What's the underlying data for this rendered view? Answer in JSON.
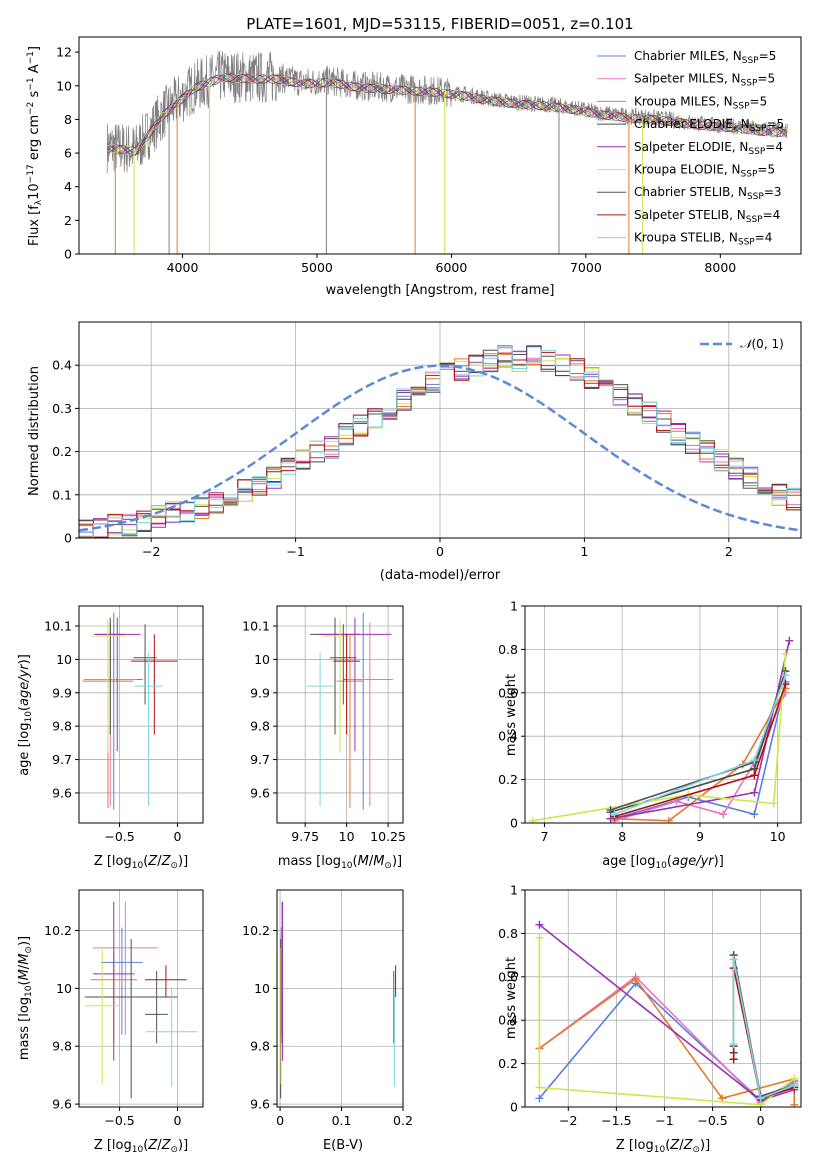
{
  "figure_title": "PLATE=1601, MJD=53115, FIBERID=0051, z=0.101",
  "colors": {
    "Chabrier MILES": "#5b7fdb",
    "Salpeter MILES": "#e377c2",
    "Kroupa MILES": "#e5792c",
    "Chabrier ELODIE": "#4d4d4d",
    "Salpeter ELODIE": "#9b30b0",
    "Kroupa ELODIE": "#cde84a",
    "Chabrier STELIB": "#555555",
    "Salpeter STELIB": "#b01010",
    "Kroupa STELIB": "#7fd6e0",
    "data": "#808080",
    "normal": "#5b8bd8"
  },
  "legend_spectrum": [
    {
      "name": "Chabrier MILES",
      "label": "Chabrier MILES, N",
      "sub": "SSP",
      "suffix": "=5"
    },
    {
      "name": "Salpeter MILES",
      "label": "Salpeter MILES, N",
      "sub": "SSP",
      "suffix": "=5"
    },
    {
      "name": "Kroupa MILES",
      "label": "Kroupa MILES, N",
      "sub": "SSP",
      "suffix": "=5"
    },
    {
      "name": "Chabrier ELODIE",
      "label": "Chabrier ELODIE, N",
      "sub": "SSP",
      "suffix": "=5"
    },
    {
      "name": "Salpeter ELODIE",
      "label": "Salpeter ELODIE, N",
      "sub": "SSP",
      "suffix": "=4"
    },
    {
      "name": "Kroupa ELODIE",
      "label": "Kroupa ELODIE, N",
      "sub": "SSP",
      "suffix": "=5"
    },
    {
      "name": "Chabrier STELIB",
      "label": "Chabrier STELIB, N",
      "sub": "SSP",
      "suffix": "=3"
    },
    {
      "name": "Salpeter STELIB",
      "label": "Salpeter STELIB, N",
      "sub": "SSP",
      "suffix": "=4"
    },
    {
      "name": "Kroupa STELIB",
      "label": "Kroupa STELIB, N",
      "sub": "SSP",
      "suffix": "=4"
    }
  ],
  "chart_data": [
    {
      "id": "spectrum",
      "type": "line",
      "title": "PLATE=1601, MJD=53115, FIBERID=0051, z=0.101",
      "xlabel": "wavelength [Angstrom, rest frame]",
      "ylabel": "Flux [f_λ 10^-17 erg cm^-2 s^-1 A^-1]",
      "xlim": [
        3230,
        8600
      ],
      "ylim": [
        0,
        12.9
      ],
      "xticks": [
        4000,
        5000,
        6000,
        7000,
        8000
      ],
      "yticks": [
        0,
        2,
        4,
        6,
        8,
        10,
        12
      ],
      "grid": false,
      "legend": "top-right",
      "data_envelope": {
        "x": [
          3440,
          3550,
          3650,
          3750,
          3850,
          3950,
          4100,
          4300,
          4500,
          4700,
          4900,
          5100,
          5300,
          5500,
          5700,
          5900,
          6100,
          6300,
          6500,
          6700,
          6900,
          7100,
          7300,
          7500,
          7700,
          7900,
          8100,
          8300,
          8500
        ],
        "y": [
          6.4,
          6.3,
          6.2,
          7.2,
          8.3,
          9.0,
          10.0,
          10.6,
          10.5,
          10.5,
          10.2,
          10.3,
          10.0,
          9.9,
          9.8,
          9.7,
          9.5,
          9.2,
          9.0,
          8.9,
          8.7,
          8.4,
          8.2,
          8.1,
          7.9,
          7.7,
          7.6,
          7.4,
          7.3
        ]
      },
      "model_spikes_x": [
        3500,
        3640,
        3900,
        3960,
        4200,
        5070,
        5730,
        5950,
        6800,
        7320,
        7420
      ]
    },
    {
      "id": "residuals",
      "type": "bar",
      "xlabel": "(data-model)/error",
      "ylabel": "Normed distribution",
      "xlim": [
        -2.5,
        2.5
      ],
      "ylim": [
        0,
        0.5
      ],
      "xticks": [
        -2,
        -1,
        0,
        1,
        2
      ],
      "yticks": [
        0.0,
        0.1,
        0.2,
        0.3,
        0.4
      ],
      "grid": true,
      "legend": "top-right",
      "legend_label": "N(0,1)",
      "bin_edges_start": -2.5,
      "bin_width": 0.1,
      "approx_hist": [
        0.02,
        0.02,
        0.03,
        0.03,
        0.04,
        0.05,
        0.06,
        0.06,
        0.07,
        0.08,
        0.1,
        0.11,
        0.12,
        0.14,
        0.16,
        0.18,
        0.2,
        0.21,
        0.24,
        0.26,
        0.28,
        0.3,
        0.32,
        0.34,
        0.36,
        0.38,
        0.39,
        0.4,
        0.41,
        0.42,
        0.41,
        0.42,
        0.41,
        0.4,
        0.39,
        0.37,
        0.35,
        0.33,
        0.31,
        0.29,
        0.27,
        0.24,
        0.22,
        0.2,
        0.18,
        0.16,
        0.14,
        0.12,
        0.1,
        0.09
      ]
    },
    {
      "id": "age_vs_Z",
      "type": "scatter",
      "xlabel": "Z [log10(Z/Z⊙)]",
      "ylabel": "age [log10(age/yr)]",
      "xlim": [
        -0.85,
        0.22
      ],
      "ylim": [
        9.51,
        10.16
      ],
      "xticks": [
        -0.5,
        0.0
      ],
      "yticks": [
        9.6,
        9.7,
        9.8,
        9.9,
        10.0,
        10.1
      ],
      "points": [
        {
          "name": "Chabrier MILES",
          "x": -0.55,
          "y": 9.94,
          "xerr": 0.25,
          "yerr": [
            0.39,
            0.2
          ]
        },
        {
          "name": "Salpeter MILES",
          "x": -0.58,
          "y": 9.94,
          "xerr": 0.23,
          "yerr": [
            0.38,
            0.17
          ]
        },
        {
          "name": "Kroupa MILES",
          "x": -0.6,
          "y": 9.935,
          "xerr": 0.22,
          "yerr": [
            0.38,
            0.14
          ]
        },
        {
          "name": "Chabrier ELODIE",
          "x": -0.58,
          "y": 10.075,
          "xerr": 0.12,
          "yerr": [
            0.3,
            0.05
          ]
        },
        {
          "name": "Salpeter ELODIE",
          "x": -0.52,
          "y": 10.075,
          "xerr": 0.2,
          "yerr": [
            0.35,
            0.05
          ]
        },
        {
          "name": "Kroupa ELODIE",
          "x": -0.6,
          "y": 10.07,
          "xerr": 0.15,
          "yerr": [
            0.35,
            0.05
          ]
        },
        {
          "name": "Chabrier STELIB",
          "x": -0.28,
          "y": 10.005,
          "xerr": 0.1,
          "yerr": [
            0.14,
            0.1
          ]
        },
        {
          "name": "Salpeter STELIB",
          "x": -0.2,
          "y": 9.995,
          "xerr": 0.2,
          "yerr": [
            0.22,
            0.08
          ]
        },
        {
          "name": "Kroupa STELIB",
          "x": -0.25,
          "y": 9.92,
          "xerr": 0.12,
          "yerr": [
            0.36,
            0.1
          ]
        }
      ]
    },
    {
      "id": "age_vs_mass",
      "type": "scatter",
      "xlabel": "mass [log10(M/M⊙)]",
      "ylabel": "",
      "xlim": [
        9.58,
        10.34
      ],
      "ylim": [
        9.51,
        10.16
      ],
      "xticks": [
        9.75,
        10.0,
        10.25
      ],
      "yticks": [
        9.6,
        9.7,
        9.8,
        9.9,
        10.0,
        10.1
      ],
      "points": [
        {
          "name": "Chabrier MILES",
          "x": 10.1,
          "y": 9.94,
          "xerr": 0.12,
          "yerr": [
            0.39,
            0.2
          ]
        },
        {
          "name": "Salpeter MILES",
          "x": 10.14,
          "y": 9.94,
          "xerr": 0.14,
          "yerr": [
            0.38,
            0.17
          ]
        },
        {
          "name": "Kroupa MILES",
          "x": 10.02,
          "y": 9.935,
          "xerr": 0.08,
          "yerr": [
            0.38,
            0.14
          ]
        },
        {
          "name": "Chabrier ELODIE",
          "x": 9.93,
          "y": 10.075,
          "xerr": 0.15,
          "yerr": [
            0.3,
            0.05
          ]
        },
        {
          "name": "Salpeter ELODIE",
          "x": 10.05,
          "y": 10.075,
          "xerr": 0.22,
          "yerr": [
            0.35,
            0.05
          ]
        },
        {
          "name": "Kroupa ELODIE",
          "x": 9.96,
          "y": 10.07,
          "xerr": 0.1,
          "yerr": [
            0.35,
            0.05
          ]
        },
        {
          "name": "Chabrier STELIB",
          "x": 9.98,
          "y": 10.005,
          "xerr": 0.08,
          "yerr": [
            0.14,
            0.1
          ]
        },
        {
          "name": "Salpeter STELIB",
          "x": 10.0,
          "y": 9.995,
          "xerr": 0.08,
          "yerr": [
            0.22,
            0.08
          ]
        },
        {
          "name": "Kroupa STELIB",
          "x": 9.84,
          "y": 9.92,
          "xerr": 0.08,
          "yerr": [
            0.36,
            0.1
          ]
        }
      ]
    },
    {
      "id": "weight_vs_age",
      "type": "line",
      "xlabel": "age [log10(age/yr)]",
      "ylabel": "mass weight",
      "xlim": [
        6.75,
        10.3
      ],
      "ylim": [
        0,
        1.0
      ],
      "xticks": [
        7,
        8,
        9,
        10
      ],
      "yticks": [
        0.0,
        0.2,
        0.4,
        0.6,
        0.8,
        1.0
      ],
      "grid": true,
      "series": [
        {
          "name": "Chabrier MILES",
          "x": [
            7.9,
            8.85,
            9.7,
            10.1
          ],
          "y": [
            0.02,
            0.12,
            0.04,
            0.65
          ]
        },
        {
          "name": "Salpeter MILES",
          "x": [
            7.9,
            8.7,
            9.3,
            9.7,
            10.1
          ],
          "y": [
            0.01,
            0.1,
            0.04,
            0.28,
            0.6
          ]
        },
        {
          "name": "Kroupa MILES",
          "x": [
            7.9,
            8.6,
            9.55,
            10.1
          ],
          "y": [
            0.02,
            0.01,
            0.27,
            0.62
          ]
        },
        {
          "name": "Chabrier ELODIE",
          "x": [
            7.85,
            9.7,
            10.1
          ],
          "y": [
            0.05,
            0.25,
            0.7
          ]
        },
        {
          "name": "Salpeter ELODIE",
          "x": [
            7.85,
            9.7,
            10.15
          ],
          "y": [
            0.02,
            0.14,
            0.84
          ]
        },
        {
          "name": "Kroupa ELODIE",
          "x": [
            6.85,
            8.85,
            9.95,
            10.1
          ],
          "y": [
            0.01,
            0.13,
            0.09,
            0.78
          ]
        },
        {
          "name": "Chabrier STELIB",
          "x": [
            7.85,
            9.7,
            10.1
          ],
          "y": [
            0.06,
            0.28,
            0.7
          ]
        },
        {
          "name": "Salpeter STELIB",
          "x": [
            7.9,
            9.7,
            10.1
          ],
          "y": [
            0.03,
            0.22,
            0.64
          ]
        },
        {
          "name": "Kroupa STELIB",
          "x": [
            7.9,
            9.7,
            10.1
          ],
          "y": [
            0.04,
            0.29,
            0.68
          ]
        }
      ]
    },
    {
      "id": "mass_vs_Z",
      "type": "scatter",
      "xlabel": "Z [log10(Z/Z⊙)]",
      "ylabel": "mass [log10(M/M⊙)]",
      "xlim": [
        -0.85,
        0.22
      ],
      "ylim": [
        9.59,
        10.34
      ],
      "xticks": [
        -0.5,
        0.0
      ],
      "yticks": [
        9.6,
        9.8,
        10.0,
        10.2
      ],
      "points": [
        {
          "name": "Chabrier MILES",
          "x": -0.48,
          "y": 10.09,
          "xerr": 0.18,
          "yerr": [
            0.25,
            0.12
          ]
        },
        {
          "name": "Salpeter MILES",
          "x": -0.45,
          "y": 10.14,
          "xerr": 0.28,
          "yerr": [
            0.3,
            0.16
          ]
        },
        {
          "name": "Kroupa MILES",
          "x": -0.55,
          "y": 10.03,
          "xerr": 0.2,
          "yerr": [
            0.22,
            0.1
          ]
        },
        {
          "name": "Chabrier ELODIE",
          "x": -0.4,
          "y": 9.97,
          "xerr": 0.4,
          "yerr": [
            0.35,
            0.2
          ]
        },
        {
          "name": "Salpeter ELODIE",
          "x": -0.55,
          "y": 10.05,
          "xerr": 0.18,
          "yerr": [
            0.3,
            0.25
          ]
        },
        {
          "name": "Kroupa ELODIE",
          "x": -0.65,
          "y": 9.94,
          "xerr": 0.15,
          "yerr": [
            0.27,
            0.2
          ]
        },
        {
          "name": "Chabrier STELIB",
          "x": -0.18,
          "y": 9.91,
          "xerr": 0.1,
          "yerr": [
            0.1,
            0.15
          ]
        },
        {
          "name": "Salpeter STELIB",
          "x": -0.1,
          "y": 10.03,
          "xerr": 0.18,
          "yerr": [
            0.06,
            0.05
          ]
        },
        {
          "name": "Kroupa STELIB",
          "x": -0.05,
          "y": 9.85,
          "xerr": 0.22,
          "yerr": [
            0.19,
            0.15
          ]
        }
      ]
    },
    {
      "id": "mass_vs_EBV",
      "type": "scatter",
      "xlabel": "E(B-V)",
      "ylabel": "",
      "xlim": [
        -0.005,
        0.2
      ],
      "ylim": [
        9.59,
        10.34
      ],
      "xticks": [
        0.0,
        0.1,
        0.2
      ],
      "yticks": [
        9.6,
        9.8,
        10.0,
        10.2
      ],
      "points": [
        {
          "name": "Chabrier MILES",
          "x": 0.002,
          "y": 10.09,
          "yerr": [
            0.25,
            0.12
          ]
        },
        {
          "name": "Salpeter MILES",
          "x": 0.003,
          "y": 10.14,
          "yerr": [
            0.3,
            0.16
          ]
        },
        {
          "name": "Kroupa MILES",
          "x": 0.002,
          "y": 10.03,
          "yerr": [
            0.22,
            0.1
          ]
        },
        {
          "name": "Chabrier ELODIE",
          "x": 0.001,
          "y": 9.97,
          "yerr": [
            0.35,
            0.2
          ]
        },
        {
          "name": "Salpeter ELODIE",
          "x": 0.004,
          "y": 10.05,
          "yerr": [
            0.3,
            0.25
          ]
        },
        {
          "name": "Kroupa ELODIE",
          "x": 0.0,
          "y": 9.94,
          "yerr": [
            0.27,
            0.2
          ]
        },
        {
          "name": "Chabrier STELIB",
          "x": 0.185,
          "y": 9.91,
          "yerr": [
            0.1,
            0.15
          ]
        },
        {
          "name": "Salpeter STELIB",
          "x": 0.188,
          "y": 10.03,
          "yerr": [
            0.06,
            0.05
          ]
        },
        {
          "name": "Kroupa STELIB",
          "x": 0.186,
          "y": 9.85,
          "yerr": [
            0.19,
            0.15
          ]
        }
      ]
    },
    {
      "id": "weight_vs_Z",
      "type": "line",
      "xlabel": "Z [log10(Z/Z⊙)]",
      "ylabel": "mass weight",
      "xlim": [
        -2.45,
        0.42
      ],
      "ylim": [
        0,
        1.0
      ],
      "xticks": [
        -2.0,
        -1.5,
        -1.0,
        -0.5,
        0.0
      ],
      "yticks": [
        0.0,
        0.2,
        0.4,
        0.6,
        0.8,
        1.0
      ],
      "grid": true,
      "series": [
        {
          "name": "Chabrier MILES",
          "x": [
            -2.3,
            -1.3,
            0.0,
            0.35
          ],
          "y": [
            0.04,
            0.57,
            0.03,
            0.12
          ]
        },
        {
          "name": "Salpeter MILES",
          "x": [
            -2.3,
            -1.3,
            0.0,
            0.35
          ],
          "y": [
            0.27,
            0.6,
            0.02,
            0.11
          ]
        },
        {
          "name": "Kroupa MILES",
          "x": [
            -2.3,
            -1.3,
            -0.4,
            0.35,
            0.35
          ],
          "y": [
            0.27,
            0.59,
            0.04,
            0.13,
            0.01
          ]
        },
        {
          "name": "Chabrier ELODIE",
          "x": [
            -0.28,
            -0.28,
            0.0,
            0.35
          ],
          "y": [
            0.25,
            0.7,
            0.04,
            0.09
          ]
        },
        {
          "name": "Salpeter ELODIE",
          "x": [
            -2.3,
            0.0,
            0.35
          ],
          "y": [
            0.84,
            0.03,
            0.08
          ]
        },
        {
          "name": "Kroupa ELODIE",
          "x": [
            -2.3,
            -2.3,
            0.0,
            0.35
          ],
          "y": [
            0.78,
            0.09,
            0.01,
            0.13
          ]
        },
        {
          "name": "Chabrier STELIB",
          "x": [
            -0.28,
            -0.28,
            0.0,
            0.35
          ],
          "y": [
            0.28,
            0.7,
            0.05,
            0.1
          ]
        },
        {
          "name": "Salpeter STELIB",
          "x": [
            -0.28,
            -0.28,
            0.0,
            0.35
          ],
          "y": [
            0.22,
            0.64,
            0.04,
            0.09
          ]
        },
        {
          "name": "Kroupa STELIB",
          "x": [
            -0.28,
            -0.28,
            0.0,
            0.35
          ],
          "y": [
            0.29,
            0.68,
            0.04,
            0.1
          ]
        }
      ]
    }
  ]
}
